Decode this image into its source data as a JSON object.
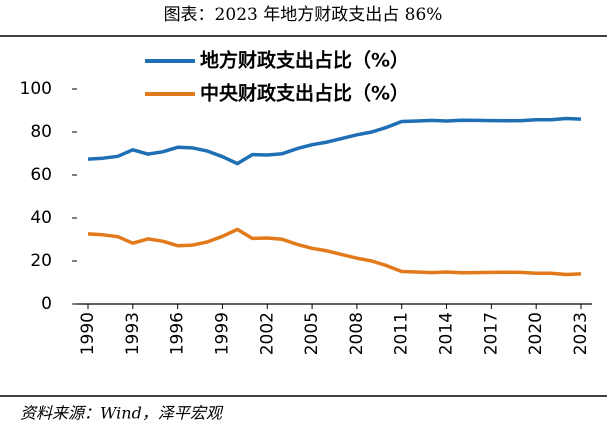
{
  "chart_data": {
    "type": "line",
    "title": "图表：2023 年地方财政支出占 86%",
    "source": "资料来源：Wind，泽平宏观",
    "x": [
      1990,
      1991,
      1992,
      1993,
      1994,
      1995,
      1996,
      1997,
      1998,
      1999,
      2000,
      2001,
      2002,
      2003,
      2004,
      2005,
      2006,
      2007,
      2008,
      2009,
      2010,
      2011,
      2012,
      2013,
      2014,
      2015,
      2016,
      2017,
      2018,
      2019,
      2020,
      2021,
      2022,
      2023
    ],
    "series": [
      {
        "name": "地方财政支出占比（%）",
        "color": "#1f6fb4",
        "values": [
          67.4,
          67.8,
          68.7,
          71.7,
          69.7,
          70.8,
          72.9,
          72.6,
          71.1,
          68.5,
          65.3,
          69.5,
          69.3,
          69.9,
          72.3,
          74.1,
          75.3,
          77.0,
          78.7,
          80.0,
          82.2,
          84.9,
          85.1,
          85.4,
          85.1,
          85.5,
          85.4,
          85.3,
          85.2,
          85.3,
          85.7,
          85.7,
          86.3,
          86.0
        ]
      },
      {
        "name": "中央财政支出占比（%）",
        "color": "#e27a1c",
        "values": [
          32.6,
          32.2,
          31.3,
          28.3,
          30.3,
          29.2,
          27.1,
          27.4,
          28.9,
          31.5,
          34.7,
          30.5,
          30.7,
          30.1,
          27.7,
          25.9,
          24.7,
          23.0,
          21.3,
          20.0,
          17.8,
          15.1,
          14.9,
          14.6,
          14.9,
          14.5,
          14.6,
          14.7,
          14.8,
          14.7,
          14.3,
          14.3,
          13.7,
          14.0
        ]
      }
    ],
    "xlim": [
      1990,
      2023
    ],
    "xticks": [
      1990,
      1993,
      1996,
      1999,
      2002,
      2005,
      2008,
      2011,
      2014,
      2017,
      2020,
      2023
    ],
    "ylim": [
      0,
      100
    ],
    "yticks": [
      0,
      20,
      40,
      60,
      80,
      100
    ]
  }
}
